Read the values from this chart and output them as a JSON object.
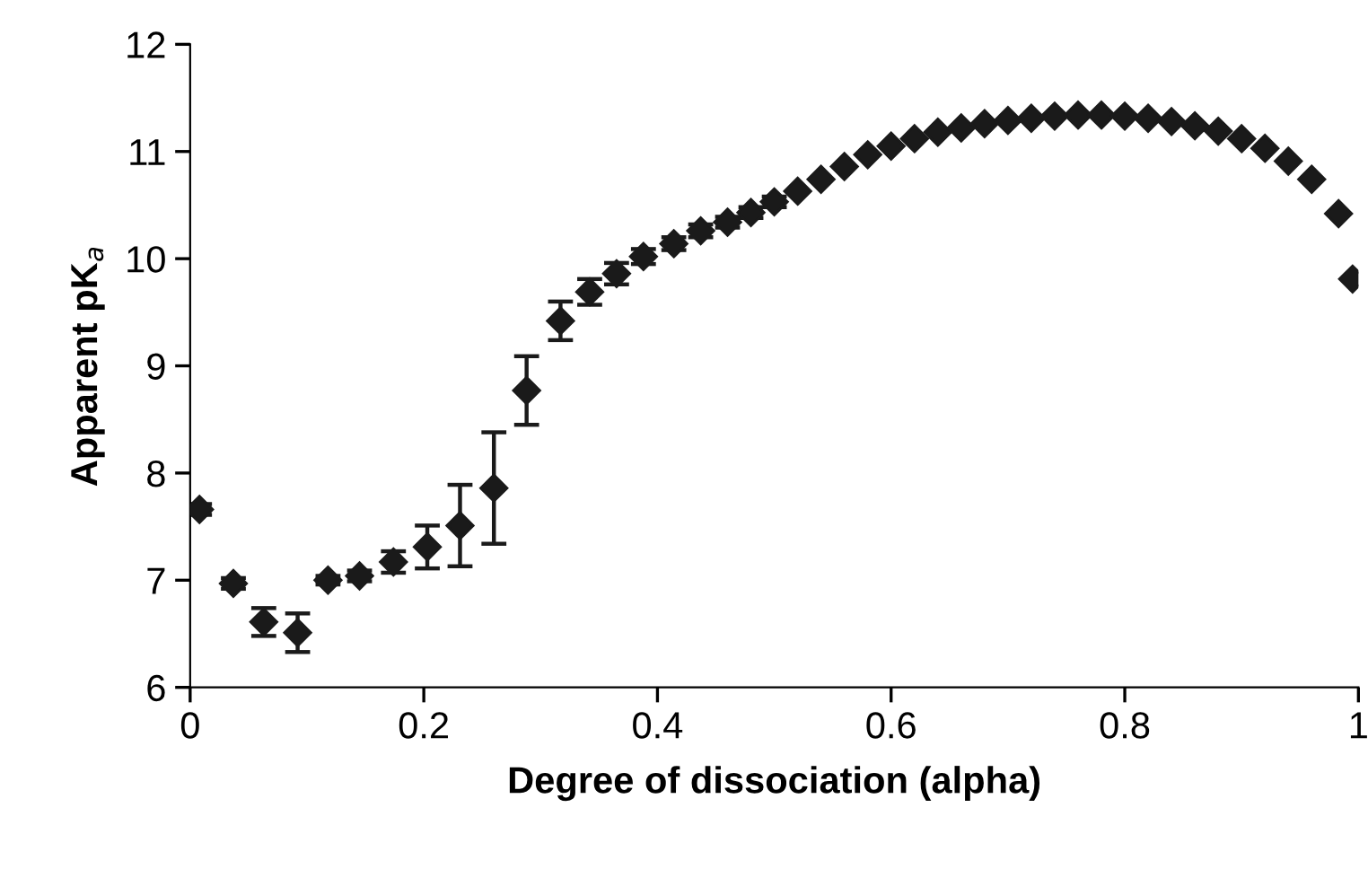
{
  "chart_data": {
    "type": "scatter",
    "xlabel": "Degree of dissociation (alpha)",
    "ylabel": "Apparent pK$_{a}$",
    "x": [
      0.008,
      0.037,
      0.063,
      0.092,
      0.118,
      0.145,
      0.174,
      0.203,
      0.231,
      0.26,
      0.288,
      0.317,
      0.342,
      0.365,
      0.388,
      0.414,
      0.437,
      0.46,
      0.48,
      0.5,
      0.52,
      0.54,
      0.56,
      0.58,
      0.6,
      0.62,
      0.64,
      0.66,
      0.68,
      0.7,
      0.72,
      0.74,
      0.76,
      0.78,
      0.8,
      0.82,
      0.84,
      0.86,
      0.88,
      0.9,
      0.92,
      0.94,
      0.96,
      0.983,
      0.995
    ],
    "series": [
      {
        "color": "#1a1a1a",
        "values": [
          7.66,
          6.97,
          6.61,
          6.51,
          7.0,
          7.04,
          7.17,
          7.31,
          7.51,
          7.86,
          8.77,
          9.42,
          9.69,
          9.86,
          10.02,
          10.14,
          10.26,
          10.34,
          10.43,
          10.53,
          10.63,
          10.74,
          10.86,
          10.97,
          11.05,
          11.12,
          11.18,
          11.22,
          11.26,
          11.29,
          11.31,
          11.33,
          11.34,
          11.34,
          11.33,
          11.31,
          11.28,
          11.24,
          11.19,
          11.12,
          11.03,
          10.91,
          10.74,
          10.42,
          9.81
        ],
        "errors": [
          0.05,
          0.05,
          0.13,
          0.18,
          0.04,
          0.05,
          0.1,
          0.2,
          0.38,
          0.52,
          0.32,
          0.18,
          0.12,
          0.1,
          0.07,
          0.06,
          0.06,
          0.05,
          0.05,
          0.05,
          null,
          null,
          null,
          null,
          null,
          null,
          null,
          null,
          null,
          null,
          null,
          null,
          null,
          null,
          null,
          null,
          null,
          null,
          null,
          null,
          null,
          null,
          null,
          null,
          null
        ]
      }
    ],
    "marker": "diamond",
    "xlim": [
      0,
      1
    ],
    "xticks": [
      0,
      0.2,
      0.4,
      0.6,
      0.8,
      1
    ],
    "ylim": [
      6,
      12
    ],
    "yticks": [
      6,
      7,
      8,
      9,
      10,
      11,
      12
    ],
    "grid": false,
    "legend": false
  }
}
